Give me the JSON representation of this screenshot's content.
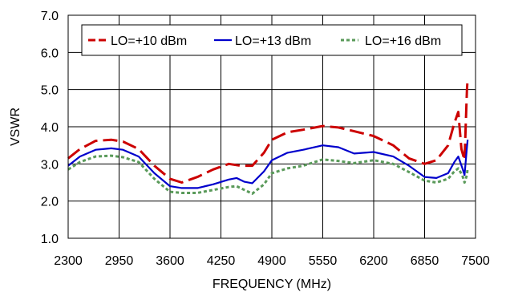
{
  "chart_data": {
    "type": "line",
    "title": "",
    "xlabel": "FREQUENCY (MHz)",
    "ylabel": "VSWR",
    "xlim": [
      2300,
      7500
    ],
    "ylim": [
      1.0,
      7.0
    ],
    "x_ticks": [
      "2300",
      "2950",
      "3600",
      "4250",
      "4900",
      "5550",
      "6200",
      "6850",
      "7500"
    ],
    "y_ticks": [
      "1.0",
      "2.0",
      "3.0",
      "4.0",
      "5.0",
      "6.0",
      "7.0"
    ],
    "x_tick_values": [
      2300,
      2950,
      3600,
      4250,
      4900,
      5550,
      6200,
      6850,
      7500
    ],
    "y_tick_values": [
      1,
      2,
      3,
      4,
      5,
      6,
      7
    ],
    "grid": true,
    "legend_position": "top",
    "series": [
      {
        "name": "LO=+10 dBm",
        "color": "#cc0000",
        "style": "dashed",
        "x": [
          2300,
          2450,
          2650,
          2850,
          3000,
          3200,
          3400,
          3600,
          3750,
          3950,
          4150,
          4350,
          4500,
          4650,
          4800,
          4900,
          5100,
          5300,
          5550,
          5750,
          5950,
          6200,
          6450,
          6650,
          6850,
          7000,
          7150,
          7230,
          7280,
          7320,
          7360,
          7390,
          7400
        ],
        "y": [
          3.15,
          3.4,
          3.62,
          3.65,
          3.6,
          3.4,
          2.95,
          2.6,
          2.5,
          2.65,
          2.85,
          3.0,
          2.95,
          2.95,
          3.3,
          3.65,
          3.85,
          3.92,
          4.02,
          3.98,
          3.88,
          3.75,
          3.5,
          3.15,
          3.0,
          3.1,
          3.5,
          4.1,
          4.4,
          3.4,
          3.1,
          5.0,
          5.3
        ]
      },
      {
        "name": "LO=+13 dBm",
        "color": "#0000cc",
        "style": "solid",
        "x": [
          2300,
          2450,
          2650,
          2850,
          3000,
          3200,
          3400,
          3600,
          3750,
          3950,
          4150,
          4350,
          4450,
          4550,
          4650,
          4800,
          4900,
          5100,
          5300,
          5550,
          5750,
          5950,
          6200,
          6450,
          6650,
          6850,
          7000,
          7150,
          7230,
          7280,
          7330,
          7360,
          7390,
          7400
        ],
        "y": [
          2.95,
          3.2,
          3.38,
          3.42,
          3.38,
          3.2,
          2.75,
          2.4,
          2.35,
          2.35,
          2.45,
          2.58,
          2.62,
          2.52,
          2.48,
          2.8,
          3.1,
          3.3,
          3.38,
          3.5,
          3.45,
          3.28,
          3.32,
          3.2,
          2.95,
          2.65,
          2.62,
          2.75,
          3.05,
          3.2,
          2.9,
          2.7,
          3.45,
          3.65
        ]
      },
      {
        "name": "LO=+16 dBm",
        "color": "#5a9a5a",
        "style": "dotted",
        "x": [
          2300,
          2450,
          2650,
          2850,
          3000,
          3200,
          3400,
          3600,
          3750,
          3950,
          4150,
          4350,
          4450,
          4550,
          4650,
          4800,
          4900,
          5100,
          5300,
          5550,
          5750,
          5950,
          6200,
          6450,
          6650,
          6850,
          7000,
          7150,
          7230,
          7280,
          7330,
          7360,
          7390,
          7400
        ],
        "y": [
          2.85,
          3.05,
          3.2,
          3.22,
          3.18,
          3.05,
          2.6,
          2.25,
          2.22,
          2.22,
          2.3,
          2.38,
          2.4,
          2.3,
          2.2,
          2.45,
          2.75,
          2.88,
          2.95,
          3.12,
          3.08,
          3.02,
          3.1,
          3.0,
          2.78,
          2.55,
          2.5,
          2.6,
          2.8,
          2.88,
          2.7,
          2.5,
          2.7,
          2.9
        ]
      }
    ]
  }
}
